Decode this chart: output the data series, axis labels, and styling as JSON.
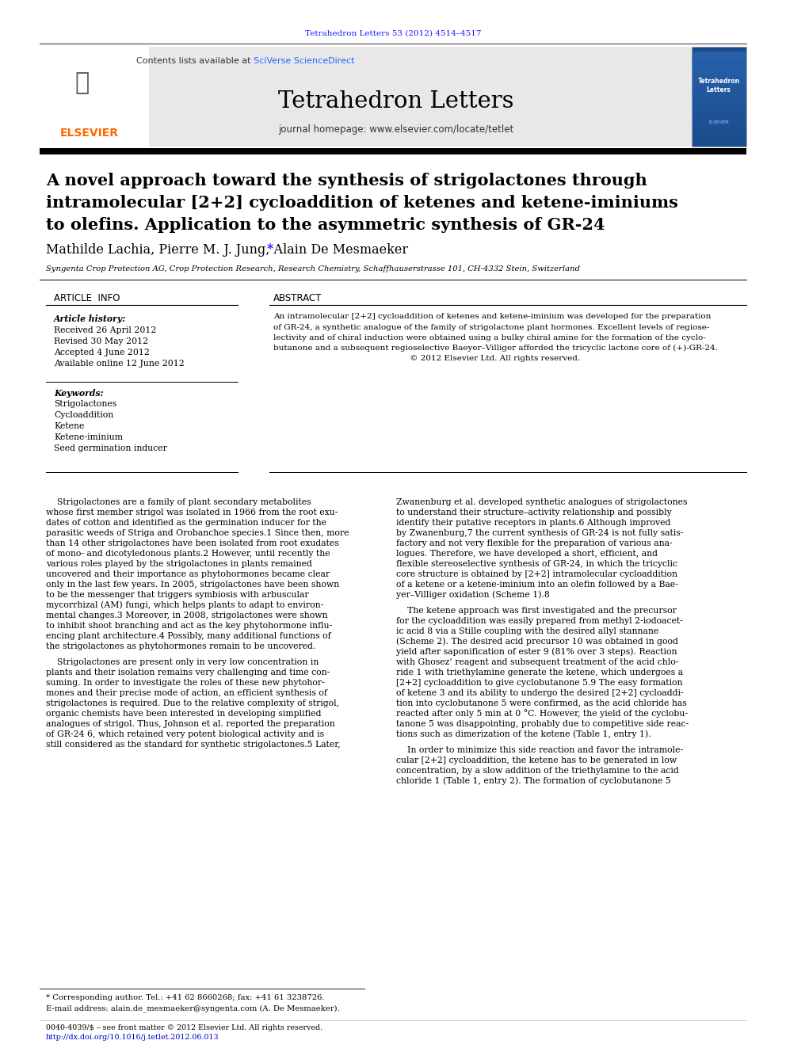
{
  "page_bg": "#ffffff",
  "top_citation": "Tetrahedron Letters 53 (2012) 4514–4517",
  "top_citation_color": "#1a1aff",
  "header_bg": "#e8e8e8",
  "journal_name": "Tetrahedron Letters",
  "journal_url": "journal homepage: www.elsevier.com/locate/tetlet",
  "contents_text": "Contents lists available at ",
  "sciverse_text": "SciVerse ScienceDirect",
  "sciverse_color": "#1a6aff",
  "article_title_line1": "A novel approach toward the synthesis of strigolactones through",
  "article_title_line2": "intramolecular [2+2] cycloaddition of ketenes and ketene-iminiums",
  "article_title_line3": "to olefins. Application to the asymmetric synthesis of GR-24",
  "authors": "Mathilde Lachia, Pierre M. J. Jung, Alain De Mesmaeker",
  "affiliation": "Syngenta Crop Protection AG, Crop Protection Research, Research Chemistry, Schaffhauserstrasse 101, CH-4332 Stein, Switzerland",
  "article_info_header": "ARTICLE  INFO",
  "abstract_header": "ABSTRACT",
  "article_history_label": "Article history:",
  "received": "Received 26 April 2012",
  "revised": "Revised 30 May 2012",
  "accepted": "Accepted 4 June 2012",
  "available": "Available online 12 June 2012",
  "keywords_label": "Keywords:",
  "keywords": [
    "Strigolactones",
    "Cycloaddition",
    "Ketene",
    "Ketene-iminium",
    "Seed germination inducer"
  ],
  "abstract_lines": [
    "An intramolecular [2+2] cycloaddition of ketenes and ketene-iminium was developed for the preparation",
    "of GR-24, a synthetic analogue of the family of strigolactone plant hormones. Excellent levels of regiose-",
    "lectivity and of chiral induction were obtained using a bulky chiral amine for the formation of the cyclo-",
    "butanone and a subsequent regioselective Baeyer–Villiger afforded the tricyclic lactone core of (+)-GR-24.",
    "                                                     © 2012 Elsevier Ltd. All rights reserved."
  ],
  "body_left1": [
    "    Strigolactones are a family of plant secondary metabolites",
    "whose first member strigol was isolated in 1966 from the root exu-",
    "dates of cotton and identified as the germination inducer for the",
    "parasitic weeds of Striga and Orobanchoe species.1 Since then, more",
    "than 14 other strigolactones have been isolated from root exudates",
    "of mono- and dicotyledonous plants.2 However, until recently the",
    "various roles played by the strigolactones in plants remained",
    "uncovered and their importance as phytohormones became clear",
    "only in the last few years. In 2005, strigolactones have been shown",
    "to be the messenger that triggers symbiosis with arbuscular",
    "mycorrhizal (AM) fungi, which helps plants to adapt to environ-",
    "mental changes.3 Moreover, in 2008, strigolactones were shown",
    "to inhibit shoot branching and act as the key phytohormone influ-",
    "encing plant architecture.4 Possibly, many additional functions of",
    "the strigolactones as phytohormones remain to be uncovered."
  ],
  "body_left2": [
    "    Strigolactones are present only in very low concentration in",
    "plants and their isolation remains very challenging and time con-",
    "suming. In order to investigate the roles of these new phytohor-",
    "mones and their precise mode of action, an efficient synthesis of",
    "strigolactones is required. Due to the relative complexity of strigol,",
    "organic chemists have been interested in developing simplified",
    "analogues of strigol. Thus, Johnson et al. reported the preparation",
    "of GR-24 6, which retained very potent biological activity and is",
    "still considered as the standard for synthetic strigolactones.5 Later,"
  ],
  "body_right1": [
    "Zwanenburg et al. developed synthetic analogues of strigolactones",
    "to understand their structure–activity relationship and possibly",
    "identify their putative receptors in plants.6 Although improved",
    "by Zwanenburg,7 the current synthesis of GR-24 is not fully satis-",
    "factory and not very flexible for the preparation of various ana-",
    "logues. Therefore, we have developed a short, efficient, and",
    "flexible stereoselective synthesis of GR-24, in which the tricyclic",
    "core structure is obtained by [2+2] intramolecular cycloaddition",
    "of a ketene or a ketene-iminium into an olefin followed by a Bae-",
    "yer–Villiger oxidation (Scheme 1).8"
  ],
  "body_right2": [
    "    The ketene approach was first investigated and the precursor",
    "for the cycloaddition was easily prepared from methyl 2-iodoacet-",
    "ic acid 8 via a Stille coupling with the desired allyl stannane",
    "(Scheme 2). The desired acid precursor 10 was obtained in good",
    "yield after saponification of ester 9 (81% over 3 steps). Reaction",
    "with Ghosez’ reagent and subsequent treatment of the acid chlo-",
    "ride 1 with triethylamine generate the ketene, which undergoes a",
    "[2+2] cycloaddition to give cyclobutanone 5.9 The easy formation",
    "of ketene 3 and its ability to undergo the desired [2+2] cycloaddi-",
    "tion into cyclobutanone 5 were confirmed, as the acid chloride has",
    "reacted after only 5 min at 0 °C. However, the yield of the cyclobu-",
    "tanone 5 was disappointing, probably due to competitive side reac-",
    "tions such as dimerization of the ketene (Table 1, entry 1)."
  ],
  "body_right3": [
    "    In order to minimize this side reaction and favor the intramole-",
    "cular [2+2] cycloaddition, the ketene has to be generated in low",
    "concentration, by a slow addition of the triethylamine to the acid",
    "chloride 1 (Table 1, entry 2). The formation of cyclobutanone 5"
  ],
  "footnote1": "* Corresponding author. Tel.: +41 62 8660268; fax: +41 61 3238726.",
  "footnote2": "E-mail address: alain.de_mesmaeker@syngenta.com (A. De Mesmaeker).",
  "footer1": "0040-4039/$ – see front matter © 2012 Elsevier Ltd. All rights reserved.",
  "footer2": "http://dx.doi.org/10.1016/j.tetlet.2012.06.013",
  "footer2_color": "#0000cc"
}
